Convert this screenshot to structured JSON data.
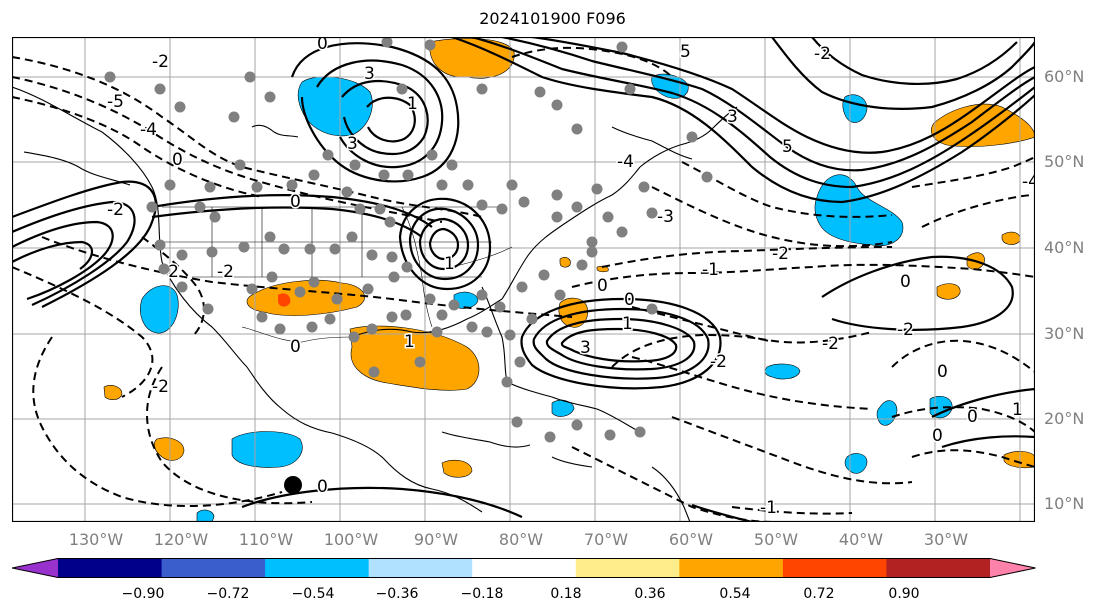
{
  "title": "2024101900 F096",
  "latitude_labels": [
    "60°N",
    "50°N",
    "40°N",
    "30°N",
    "20°N",
    "10°N"
  ],
  "longitude_labels": [
    "130°W",
    "120°W",
    "110°W",
    "100°W",
    "90°W",
    "80°W",
    "70°W",
    "60°W",
    "50°W",
    "40°W",
    "30°W"
  ],
  "contour_labels": {
    "pos_3": "3",
    "pos_5": "5",
    "pos_1": "1",
    "zero": "0",
    "neg_2": "-2",
    "neg_1": "-1",
    "neg_3": "-3",
    "neg_4": "-4",
    "neg_5": "-5"
  },
  "colorbar": {
    "tick_labels": [
      "−0.90",
      "−0.72",
      "−0.54",
      "−0.36",
      "−0.18",
      "0.18",
      "0.36",
      "0.54",
      "0.72",
      "0.90"
    ],
    "colors": [
      "#9932cc",
      "#00008b",
      "#3a5fcd",
      "#00bfff",
      "#b0e2ff",
      "#ffffff",
      "#ffec8b",
      "#ffa500",
      "#ff4500",
      "#b22222",
      "#ff82ab"
    ]
  },
  "shading_colors": {
    "orange": "#ffa500",
    "lightblue": "#00bfff",
    "red": "#ff4500"
  }
}
